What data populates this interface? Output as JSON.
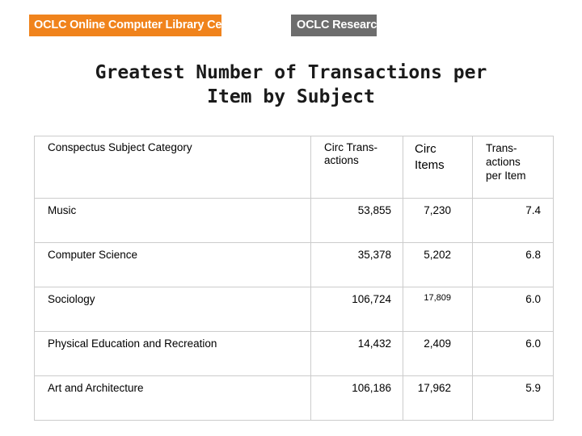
{
  "header": {
    "logo_left": "OCLC Online Computer Library Center",
    "logo_right": "OCLC Research",
    "brand_orange": "#f0831c",
    "brand_gray": "#6d6d6d"
  },
  "title_line1": "Greatest Number of Transactions per",
  "title_line2": "Item by Subject",
  "table": {
    "columns": {
      "category": "Conspectus Subject Category",
      "circ_transactions": [
        "Circ Trans-",
        "actions"
      ],
      "circ_items": [
        "Circ",
        "Items"
      ],
      "per_item": [
        "Trans-",
        "actions",
        "per Item"
      ]
    },
    "rows": [
      {
        "category": "Music",
        "transactions": "53,855",
        "items": "7,230",
        "per_item": "7.4"
      },
      {
        "category": "Computer Science",
        "transactions": "35,378",
        "items": "5,202",
        "per_item": "6.8"
      },
      {
        "category": "Sociology",
        "transactions": "106,724",
        "items": "17,809",
        "per_item": "6.0"
      },
      {
        "category": "Physical Education and Recreation",
        "transactions": "14,432",
        "items": "2,409",
        "per_item": "6.0"
      },
      {
        "category": "Art and Architecture",
        "transactions": "106,186",
        "items": "17,962",
        "per_item": "5.9"
      }
    ]
  }
}
